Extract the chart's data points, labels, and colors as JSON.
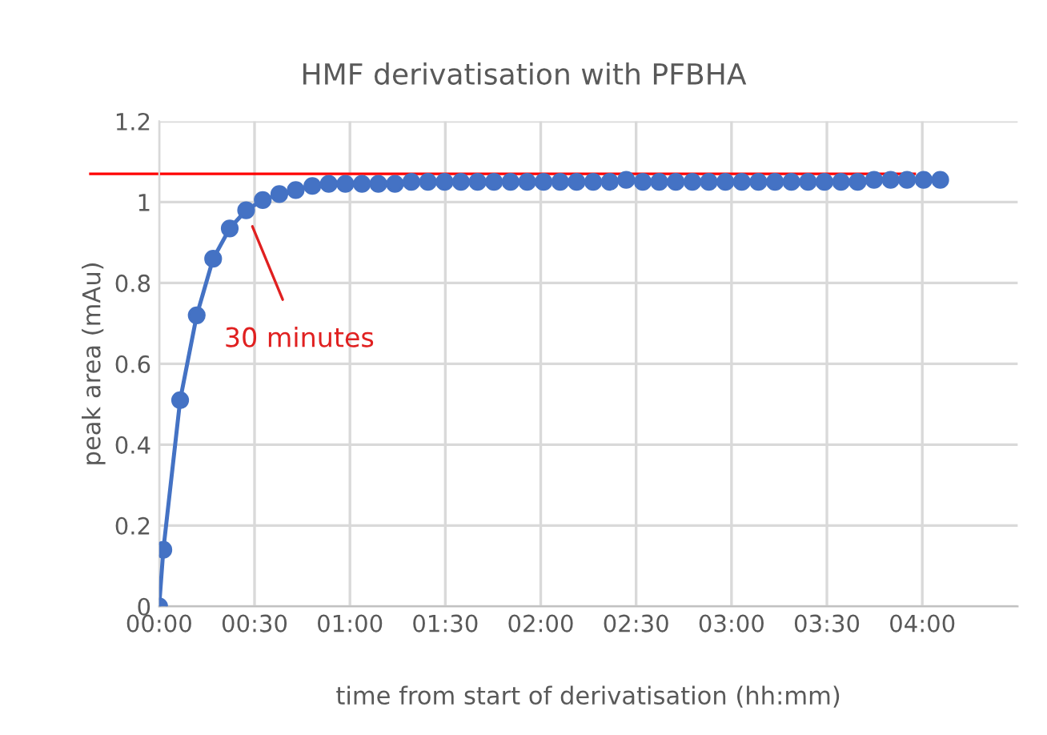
{
  "chart_data": {
    "type": "line",
    "title": "HMF derivatisation with PFBHA",
    "xlabel": "time from start of derivatisation (hh:mm)",
    "ylabel": "peak area (mAu)",
    "x": [
      0,
      0.022,
      0.11,
      0.197,
      0.283,
      0.37,
      0.456,
      0.543,
      0.63,
      0.716,
      0.803,
      0.889,
      0.976,
      1.063,
      1.149,
      1.236,
      1.322,
      1.409,
      1.496,
      1.582,
      1.669,
      1.755,
      1.842,
      1.929,
      2.015,
      2.102,
      2.188,
      2.275,
      2.362,
      2.448,
      2.535,
      2.621,
      2.708,
      2.795,
      2.881,
      2.968,
      3.054,
      3.141,
      3.228,
      3.314,
      3.401,
      3.487,
      3.574,
      3.661,
      3.747,
      3.834,
      3.92,
      4.007,
      4.094
    ],
    "series": [
      {
        "color": "#4472c4",
        "values": [
          0,
          0.14,
          0.51,
          0.72,
          0.86,
          0.935,
          0.98,
          1.005,
          1.02,
          1.03,
          1.04,
          1.045,
          1.045,
          1.045,
          1.045,
          1.045,
          1.05,
          1.05,
          1.05,
          1.05,
          1.05,
          1.05,
          1.05,
          1.05,
          1.05,
          1.05,
          1.05,
          1.05,
          1.05,
          1.055,
          1.05,
          1.05,
          1.05,
          1.05,
          1.05,
          1.05,
          1.05,
          1.05,
          1.05,
          1.05,
          1.05,
          1.05,
          1.05,
          1.05,
          1.055,
          1.055,
          1.055,
          1.055,
          1.055
        ]
      }
    ],
    "xlim": [
      0,
      4.5
    ],
    "ylim": [
      0,
      1.2
    ],
    "xticks": [
      {
        "value": 0,
        "label": "00:00"
      },
      {
        "value": 0.5,
        "label": "00:30"
      },
      {
        "value": 1,
        "label": "01:00"
      },
      {
        "value": 1.5,
        "label": "01:30"
      },
      {
        "value": 2,
        "label": "02:00"
      },
      {
        "value": 2.5,
        "label": "02:30"
      },
      {
        "value": 3,
        "label": "03:00"
      },
      {
        "value": 3.5,
        "label": "03:30"
      },
      {
        "value": 4,
        "label": "04:00"
      }
    ],
    "yticks": [
      0,
      0.2,
      0.4,
      0.6,
      0.8,
      1,
      1.2
    ],
    "ref_lines": [
      {
        "axis": "y",
        "value": 1.07,
        "color": "#ff0000"
      }
    ],
    "annotations": [
      {
        "text": "30 minutes",
        "x": 0.48,
        "y": 0.95
      }
    ],
    "grid": true,
    "marker": "circle",
    "line_style": "solid",
    "legend": false
  }
}
